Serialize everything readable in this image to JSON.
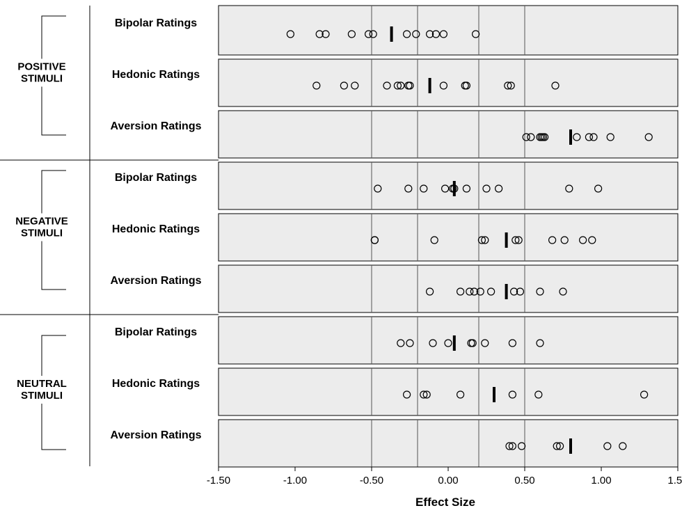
{
  "chart_data": {
    "type": "scatter",
    "xlabel": "Effect Size",
    "xlim": [
      -1.5,
      1.5
    ],
    "x_ticks": [
      "-1.50",
      "-1.00",
      "-0.50",
      "0.00",
      "0.50",
      "1.00",
      "1.50"
    ],
    "vertical_reference_lines": [
      -0.5,
      -0.2,
      0.2,
      0.5
    ],
    "colors": {
      "panel_bg": "#ececec",
      "ink": "#000000"
    },
    "groups": [
      {
        "label": "POSITIVE\nSTIMULI",
        "rows": [
          {
            "label": "Bipolar Ratings",
            "mean": -0.37,
            "points": [
              -1.03,
              -0.84,
              -0.8,
              -0.63,
              -0.52,
              -0.49,
              -0.27,
              -0.21,
              -0.12,
              -0.08,
              -0.03,
              0.18
            ]
          },
          {
            "label": "Hedonic Ratings",
            "mean": -0.12,
            "points": [
              -0.86,
              -0.68,
              -0.61,
              -0.4,
              -0.33,
              -0.31,
              -0.26,
              -0.25,
              -0.03,
              0.11,
              0.12,
              0.39,
              0.41,
              0.7
            ]
          },
          {
            "label": "Aversion Ratings",
            "mean": 0.8,
            "points": [
              0.51,
              0.54,
              0.6,
              0.61,
              0.62,
              0.63,
              0.84,
              0.92,
              0.95,
              1.06,
              1.31
            ]
          }
        ]
      },
      {
        "label": "NEGATIVE\nSTIMULI",
        "rows": [
          {
            "label": "Bipolar Ratings",
            "mean": 0.04,
            "points": [
              -0.46,
              -0.26,
              -0.16,
              -0.02,
              0.03,
              0.04,
              0.12,
              0.25,
              0.33,
              0.79,
              0.98
            ]
          },
          {
            "label": "Hedonic Ratings",
            "mean": 0.38,
            "points": [
              -0.48,
              -0.48,
              -0.09,
              0.22,
              0.24,
              0.44,
              0.46,
              0.68,
              0.76,
              0.88,
              0.94
            ]
          },
          {
            "label": "Aversion Ratings",
            "mean": 0.38,
            "points": [
              -0.12,
              0.08,
              0.14,
              0.17,
              0.21,
              0.28,
              0.43,
              0.47,
              0.6,
              0.75
            ]
          }
        ]
      },
      {
        "label": "NEUTRAL\nSTIMULI",
        "rows": [
          {
            "label": "Bipolar Ratings",
            "mean": 0.04,
            "points": [
              -0.31,
              -0.25,
              -0.1,
              0.0,
              0.15,
              0.16,
              0.24,
              0.42,
              0.6
            ]
          },
          {
            "label": "Hedonic Ratings",
            "mean": 0.3,
            "points": [
              -0.27,
              -0.16,
              -0.14,
              0.08,
              0.42,
              0.59,
              1.28
            ]
          },
          {
            "label": "Aversion Ratings",
            "mean": 0.8,
            "points": [
              0.4,
              0.42,
              0.48,
              0.71,
              0.73,
              1.04,
              1.14
            ]
          }
        ]
      }
    ]
  }
}
